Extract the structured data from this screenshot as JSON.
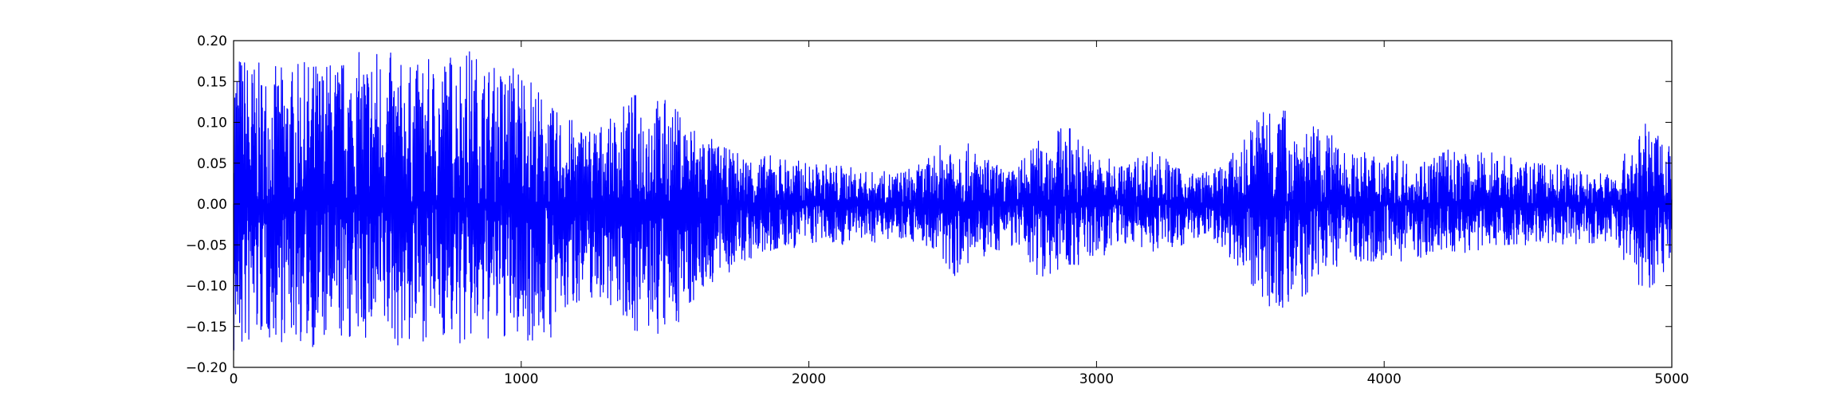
{
  "chart_data": {
    "type": "line",
    "title": "",
    "xlabel": "",
    "ylabel": "",
    "xlim": [
      0,
      5000
    ],
    "ylim": [
      -0.2,
      0.2
    ],
    "xticks": [
      0,
      1000,
      2000,
      3000,
      4000,
      5000
    ],
    "xtick_labels": [
      "0",
      "1000",
      "2000",
      "3000",
      "4000",
      "5000"
    ],
    "yticks": [
      -0.2,
      -0.15,
      -0.1,
      -0.05,
      0.0,
      0.05,
      0.1,
      0.15,
      0.2
    ],
    "ytick_labels": [
      "−0.20",
      "−0.15",
      "−0.10",
      "−0.05",
      "0.00",
      "0.05",
      "0.10",
      "0.15",
      "0.20"
    ],
    "grid": false,
    "legend": "none",
    "series": [
      {
        "color": "#0000ff",
        "envelope": {
          "x": [
            0,
            100,
            200,
            300,
            400,
            500,
            600,
            700,
            800,
            900,
            1000,
            1100,
            1200,
            1300,
            1400,
            1500,
            1600,
            1700,
            1800,
            1900,
            2000,
            2100,
            2200,
            2300,
            2400,
            2500,
            2600,
            2700,
            2800,
            2900,
            3000,
            3100,
            3200,
            3300,
            3400,
            3500,
            3600,
            3700,
            3800,
            3900,
            4000,
            4100,
            4200,
            4300,
            4400,
            4500,
            4600,
            4700,
            4800,
            4900,
            5000
          ],
          "upper": [
            0.2,
            0.17,
            0.17,
            0.18,
            0.18,
            0.2,
            0.17,
            0.18,
            0.2,
            0.17,
            0.18,
            0.12,
            0.1,
            0.1,
            0.14,
            0.13,
            0.1,
            0.07,
            0.06,
            0.06,
            0.05,
            0.05,
            0.04,
            0.04,
            0.05,
            0.09,
            0.06,
            0.04,
            0.08,
            0.1,
            0.06,
            0.05,
            0.07,
            0.04,
            0.04,
            0.07,
            0.14,
            0.1,
            0.09,
            0.06,
            0.07,
            0.05,
            0.07,
            0.06,
            0.07,
            0.05,
            0.05,
            0.04,
            0.04,
            0.1,
            0.08
          ],
          "lower": [
            -0.2,
            -0.17,
            -0.17,
            -0.18,
            -0.17,
            -0.17,
            -0.18,
            -0.16,
            -0.18,
            -0.17,
            -0.17,
            -0.17,
            -0.12,
            -0.12,
            -0.16,
            -0.17,
            -0.12,
            -0.09,
            -0.07,
            -0.06,
            -0.05,
            -0.05,
            -0.05,
            -0.04,
            -0.05,
            -0.09,
            -0.07,
            -0.05,
            -0.09,
            -0.08,
            -0.07,
            -0.05,
            -0.06,
            -0.05,
            -0.04,
            -0.08,
            -0.13,
            -0.13,
            -0.08,
            -0.07,
            -0.07,
            -0.07,
            -0.06,
            -0.06,
            -0.05,
            -0.05,
            -0.05,
            -0.05,
            -0.05,
            -0.11,
            -0.08
          ]
        }
      }
    ]
  }
}
